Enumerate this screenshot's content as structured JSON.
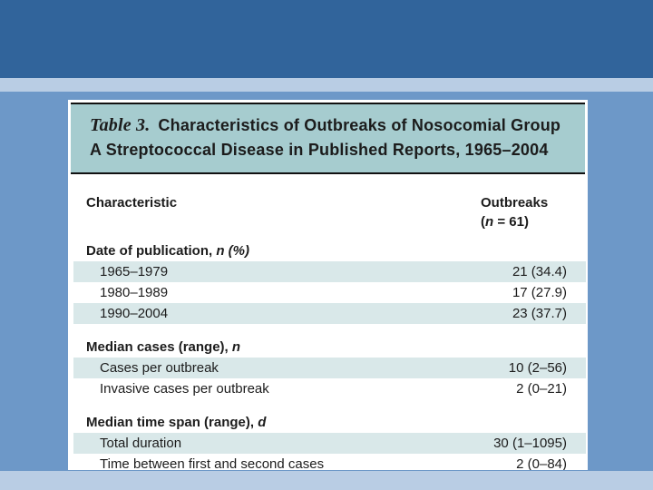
{
  "slide": {
    "colors": {
      "top_band": "#31649B",
      "accent_band": "#B9CDE4",
      "body": "#6D98C8",
      "panel": "#FFFFFF",
      "title_box": "#A6CCCF",
      "row_shade": "#D9E8E9",
      "ink": "#1C1C1C",
      "rule": "#111111"
    }
  },
  "table": {
    "label": "Table 3.",
    "title_line1": "Characteristics of Outbreaks of Nosocomial Group",
    "title_line2": "A Streptococcal Disease in Published Reports, 1965–2004",
    "columns": {
      "characteristic": "Characteristic",
      "outbreaks": "Outbreaks",
      "n_open": "(",
      "n_italic": "n",
      "n_rest": " = 61)"
    },
    "sections": [
      {
        "header_text": "Date of publication, ",
        "header_italic": "n (%)",
        "rows": [
          {
            "label": "1965–1979",
            "value": "21 (34.4)"
          },
          {
            "label": "1980–1989",
            "value": "17 (27.9)"
          },
          {
            "label": "1990–2004",
            "value": "23 (37.7)"
          }
        ]
      },
      {
        "header_text": "Median cases (range), ",
        "header_italic": "n",
        "rows": [
          {
            "label": "Cases per outbreak",
            "value": "10 (2–56)"
          },
          {
            "label": "Invasive cases per outbreak",
            "value": "2 (0–21)"
          }
        ]
      },
      {
        "header_text": "Median time span (range), ",
        "header_italic": "d",
        "rows": [
          {
            "label": "Total duration",
            "value": "30 (1–1095)"
          },
          {
            "label": "Time between first and second cases",
            "value": "2 (0–84)"
          }
        ]
      }
    ]
  }
}
